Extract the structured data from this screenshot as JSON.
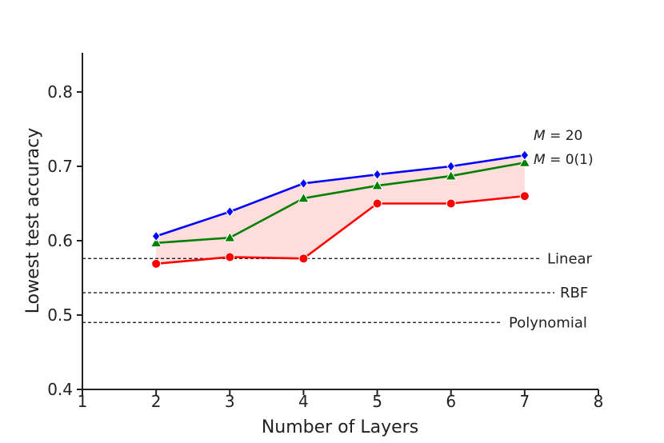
{
  "chart_data": {
    "type": "line",
    "xlabel": "Number of Layers",
    "ylabel": "Lowest test accuracy",
    "xlim": [
      1,
      8
    ],
    "ylim": [
      0.4,
      0.85
    ],
    "xticks": [
      "1",
      "2",
      "3",
      "4",
      "5",
      "6",
      "7",
      "8"
    ],
    "yticks": [
      "0.4",
      "0.5",
      "0.6",
      "0.7",
      "0.8"
    ],
    "grid": false,
    "x": [
      2,
      3,
      4,
      5,
      6,
      7
    ],
    "series": [
      {
        "name": "M = 20",
        "color": "#0000ff",
        "marker": "diamond",
        "values": [
          0.606,
          0.639,
          0.677,
          0.689,
          0.7,
          0.715
        ]
      },
      {
        "name": "M = 0(1)",
        "color": "#008000",
        "marker": "triangle",
        "values": [
          0.597,
          0.604,
          0.657,
          0.674,
          0.687,
          0.705
        ]
      },
      {
        "name": "",
        "color": "#ff0000",
        "marker": "circle",
        "values": [
          0.569,
          0.578,
          0.576,
          0.65,
          0.65,
          0.66
        ]
      }
    ],
    "shaded_region": {
      "between": [
        0,
        2
      ],
      "color": "#ffdddd"
    },
    "reference_lines": [
      {
        "label": "Linear",
        "y": 0.576
      },
      {
        "label": "RBF",
        "y": 0.53
      },
      {
        "label": "Polynomial",
        "y": 0.49
      }
    ],
    "legend": {
      "placement": "right-end-of-lines",
      "entries": [
        {
          "var": "M",
          "text": " = 20"
        },
        {
          "var": "M",
          "text": " = 0(1)"
        }
      ]
    }
  }
}
